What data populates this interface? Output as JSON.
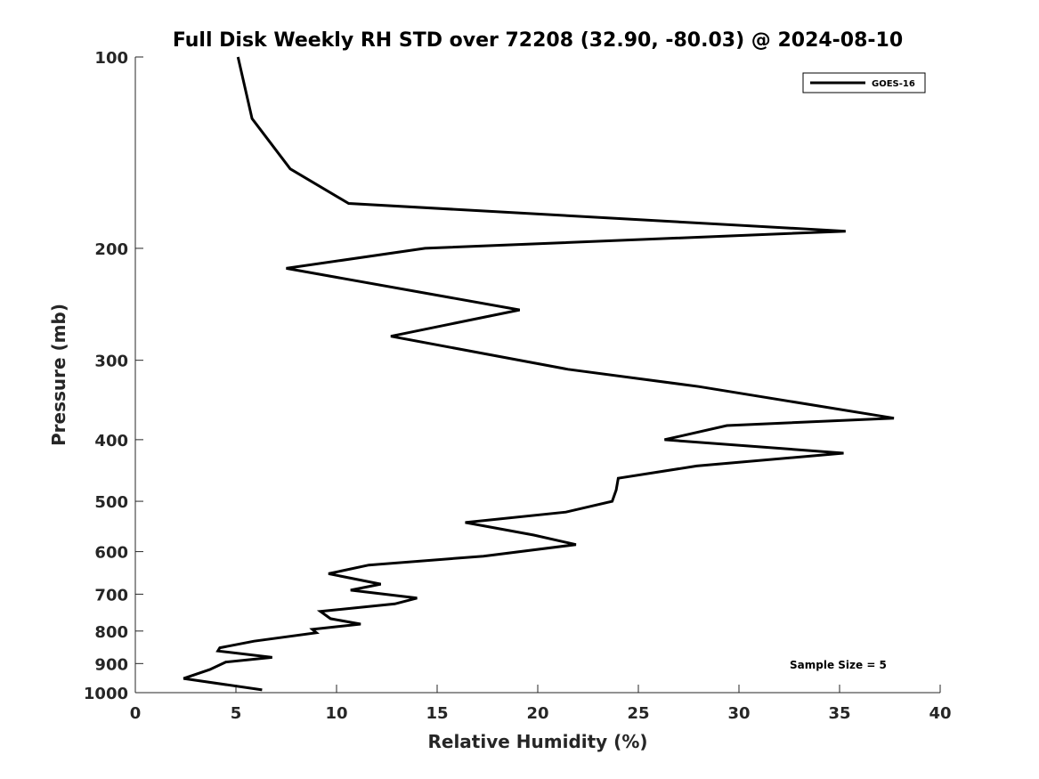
{
  "chart_data": {
    "type": "line",
    "title": "Full Disk Weekly RH STD over 72208 (32.90, -80.03) @ 2024-08-10",
    "xlabel": "Relative Humidity (%)",
    "ylabel": "Pressure (mb)",
    "xlim": [
      0,
      40
    ],
    "ylim": [
      100,
      1000
    ],
    "yscale": "log",
    "y_reversed": true,
    "xticks": [
      0,
      5,
      10,
      15,
      20,
      25,
      30,
      35,
      40
    ],
    "yticks": [
      100,
      200,
      300,
      400,
      500,
      600,
      700,
      800,
      900,
      1000
    ],
    "grid": false,
    "legend_position": "top-right",
    "annotation": "Sample Size = 5",
    "series": [
      {
        "name": "GOES-16",
        "color": "#000000",
        "x": [
          5.1,
          5.8,
          7.7,
          10.6,
          35.3,
          14.4,
          7.5,
          19.1,
          12.7,
          21.5,
          28.0,
          37.7,
          29.4,
          26.3,
          35.2,
          27.9,
          24.0,
          23.9,
          23.7,
          21.4,
          16.4,
          19.8,
          21.9,
          17.3,
          11.6,
          9.6,
          12.2,
          10.7,
          14.0,
          12.9,
          9.2,
          9.7,
          11.2,
          8.8,
          9.0,
          5.9,
          4.2,
          4.1,
          6.8,
          4.5,
          3.7,
          2.4,
          6.3
        ],
        "y": [
          100,
          125,
          150,
          170,
          188,
          200,
          215,
          250,
          275,
          310,
          330,
          370,
          380,
          400,
          420,
          440,
          460,
          480,
          500,
          520,
          540,
          565,
          585,
          610,
          630,
          650,
          675,
          690,
          710,
          725,
          745,
          765,
          780,
          795,
          805,
          830,
          850,
          860,
          880,
          895,
          920,
          950,
          990
        ]
      }
    ]
  }
}
